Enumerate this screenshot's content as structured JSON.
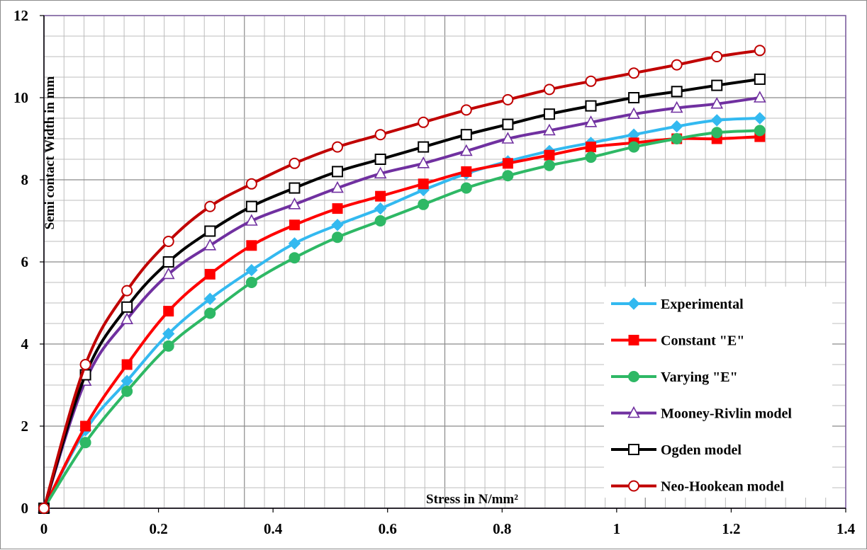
{
  "chart_data": {
    "type": "line",
    "title": "",
    "xlabel": "Stress in N/mm²",
    "ylabel": "Semi contact Width in mm",
    "xlim": [
      0,
      1.4
    ],
    "ylim": [
      0,
      12
    ],
    "x_ticks": [
      "0",
      "0.2",
      "0.4",
      "0.6",
      "0.8",
      "1",
      "1.2",
      "1.4"
    ],
    "y_ticks": [
      "0",
      "2",
      "4",
      "6",
      "8",
      "10",
      "12"
    ],
    "grid": true,
    "legend_position": "bottom-right",
    "x": [
      0,
      0.0725,
      0.145,
      0.2175,
      0.29,
      0.3625,
      0.4375,
      0.5125,
      0.5875,
      0.6625,
      0.7375,
      0.81,
      0.8825,
      0.955,
      1.03,
      1.105,
      1.175,
      1.25
    ],
    "series": [
      {
        "name": "Experimental",
        "color": "#33b9f0",
        "marker": "diamond",
        "values": [
          0,
          1.9,
          3.1,
          4.25,
          5.1,
          5.8,
          6.45,
          6.9,
          7.3,
          7.75,
          8.15,
          8.45,
          8.7,
          8.9,
          9.1,
          9.3,
          9.45,
          9.5
        ]
      },
      {
        "name": "Constant  \"E\"",
        "color": "#ff0000",
        "marker": "square",
        "values": [
          0,
          2.0,
          3.5,
          4.8,
          5.7,
          6.4,
          6.9,
          7.3,
          7.6,
          7.9,
          8.2,
          8.4,
          8.6,
          8.8,
          8.9,
          9.0,
          9.0,
          9.05
        ]
      },
      {
        "name": "Varying  \"E\"",
        "color": "#2eb865",
        "marker": "circle-filled",
        "values": [
          0,
          1.6,
          2.85,
          3.95,
          4.75,
          5.5,
          6.1,
          6.6,
          7.0,
          7.4,
          7.8,
          8.1,
          8.35,
          8.55,
          8.8,
          9.0,
          9.15,
          9.2
        ]
      },
      {
        "name": "Mooney-Rivlin model",
        "color": "#7030a0",
        "marker": "triangle-open",
        "values": [
          0,
          3.1,
          4.6,
          5.7,
          6.4,
          7.0,
          7.4,
          7.8,
          8.15,
          8.4,
          8.7,
          9.0,
          9.2,
          9.4,
          9.6,
          9.75,
          9.85,
          10.0
        ]
      },
      {
        "name": "Ogden model",
        "color": "#000000",
        "marker": "square-open",
        "values": [
          0,
          3.25,
          4.9,
          6.0,
          6.75,
          7.35,
          7.8,
          8.2,
          8.5,
          8.8,
          9.1,
          9.35,
          9.6,
          9.8,
          10.0,
          10.15,
          10.3,
          10.45
        ]
      },
      {
        "name": "Neo-Hookean model",
        "color": "#c00000",
        "marker": "circle-open",
        "values": [
          0,
          3.5,
          5.3,
          6.5,
          7.35,
          7.9,
          8.4,
          8.8,
          9.1,
          9.4,
          9.7,
          9.95,
          10.2,
          10.4,
          10.6,
          10.8,
          11.0,
          11.15
        ]
      }
    ]
  }
}
